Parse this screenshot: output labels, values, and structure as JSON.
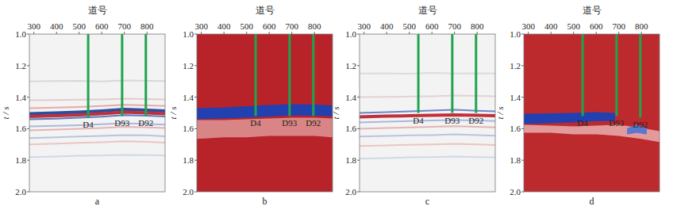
{
  "chart_data": [
    {
      "type": "seismic",
      "label": "a",
      "xlabel": "道号",
      "ylabel": "t / s",
      "color": "#f3f3f3",
      "xlim": [
        280,
        880
      ],
      "xticks": [
        300,
        400,
        500,
        600,
        700,
        800
      ],
      "ylim": [
        1.0,
        2.0
      ],
      "yticks": [
        {
          "value": 1.0,
          "label": "1.0"
        },
        1.2,
        1.4,
        1.6,
        1.8,
        {
          "value": 2.0,
          "label": "2.0"
        }
      ],
      "wells": [
        {
          "name": "D4",
          "x": 540,
          "bottom": 1.53,
          "color": "#1fa34f"
        },
        {
          "name": "D93",
          "x": 690,
          "bottom": 1.52,
          "color": "#1fa34f"
        },
        {
          "name": "D92",
          "x": 795,
          "bottom": 1.52,
          "color": "#1fa34f"
        }
      ],
      "events": [
        {
          "color": "#d8d8d8",
          "line_style": "thin",
          "x": [
            280,
            400,
            500,
            600,
            700,
            800,
            880
          ],
          "values": [
            1.3,
            1.298,
            1.296,
            1.3,
            1.294,
            1.296,
            1.298
          ]
        },
        {
          "color": "#e2cccc",
          "line_style": "thin",
          "x": [
            280,
            400,
            500,
            600,
            700,
            800,
            880
          ],
          "values": [
            1.42,
            1.418,
            1.416,
            1.414,
            1.41,
            1.412,
            1.414
          ]
        },
        {
          "color": "#e9a8a8",
          "line_style": "thin",
          "x": [
            280,
            400,
            500,
            600,
            700,
            800,
            880
          ],
          "values": [
            1.47,
            1.466,
            1.462,
            1.456,
            1.448,
            1.452,
            1.456
          ]
        },
        {
          "color": "#2a4fa0",
          "line_style": "thick",
          "x": [
            280,
            400,
            500,
            600,
            700,
            800,
            880
          ],
          "values": [
            1.505,
            1.5,
            1.495,
            1.488,
            1.478,
            1.482,
            1.488
          ]
        },
        {
          "color": "#c0303a",
          "line_style": "thick",
          "x": [
            280,
            400,
            500,
            600,
            700,
            800,
            880
          ],
          "values": [
            1.522,
            1.518,
            1.512,
            1.505,
            1.495,
            1.5,
            1.505
          ]
        },
        {
          "color": "#5a7ac0",
          "line_style": "thin",
          "x": [
            280,
            400,
            500,
            600,
            700,
            800,
            880
          ],
          "values": [
            1.54,
            1.536,
            1.53,
            1.524,
            1.514,
            1.518,
            1.523
          ]
        },
        {
          "color": "#a8b8dc",
          "line_style": "thin",
          "x": [
            280,
            400,
            500,
            600,
            700,
            800,
            880
          ],
          "values": [
            1.585,
            1.582,
            1.578,
            1.572,
            1.565,
            1.57,
            1.574
          ]
        },
        {
          "color": "#e5b3b3",
          "line_style": "thin",
          "x": [
            280,
            400,
            500,
            600,
            700,
            800,
            880
          ],
          "values": [
            1.61,
            1.606,
            1.6,
            1.595,
            1.588,
            1.592,
            1.596
          ]
        },
        {
          "color": "#b8c4e0",
          "line_style": "thin",
          "x": [
            280,
            400,
            500,
            600,
            700,
            800,
            880
          ],
          "values": [
            1.66,
            1.655,
            1.65,
            1.645,
            1.64,
            1.642,
            1.648
          ]
        },
        {
          "color": "#ecc4c4",
          "line_style": "thin",
          "x": [
            280,
            400,
            500,
            600,
            700,
            800,
            880
          ],
          "values": [
            1.7,
            1.695,
            1.69,
            1.686,
            1.68,
            1.684,
            1.688
          ]
        },
        {
          "color": "#d0d8e8",
          "line_style": "thin",
          "x": [
            280,
            400,
            500,
            600,
            700,
            800,
            880
          ],
          "values": [
            1.78,
            1.776,
            1.772,
            1.77,
            1.766,
            1.768,
            1.77
          ]
        }
      ]
    },
    {
      "type": "inversion",
      "label": "b",
      "xlabel": "道号",
      "ylabel": "t / s",
      "color": "#b8232a",
      "xlim": [
        280,
        880
      ],
      "xticks": [
        300,
        400,
        500,
        600,
        700,
        800
      ],
      "ylim": [
        1.0,
        2.0
      ],
      "yticks": [
        {
          "value": 1.0,
          "label": "1.0"
        },
        1.2,
        1.4,
        1.6,
        1.8,
        {
          "value": 2.0,
          "label": "2.0"
        }
      ],
      "wells": [
        {
          "name": "D4",
          "x": 540,
          "bottom": 1.52,
          "color": "#1fa34f"
        },
        {
          "name": "D93",
          "x": 690,
          "bottom": 1.52,
          "color": "#1fa34f"
        },
        {
          "name": "D92",
          "x": 795,
          "bottom": 1.52,
          "color": "#1fa34f"
        }
      ],
      "bands": [
        {
          "color": "#d98585",
          "x": [
            280,
            400,
            500,
            600,
            700,
            800,
            880
          ],
          "top": [
            1.55,
            1.55,
            1.545,
            1.54,
            1.535,
            1.535,
            1.54
          ],
          "bottom": [
            1.66,
            1.65,
            1.65,
            1.64,
            1.64,
            1.64,
            1.65
          ]
        },
        {
          "color": "#2340b0",
          "x": [
            280,
            400,
            500,
            600,
            700,
            800,
            880
          ],
          "top": [
            1.475,
            1.47,
            1.462,
            1.455,
            1.45,
            1.452,
            1.458
          ],
          "bottom": [
            1.535,
            1.53,
            1.525,
            1.518,
            1.51,
            1.512,
            1.515
          ]
        }
      ]
    },
    {
      "type": "seismic",
      "label": "c",
      "xlabel": "道号",
      "ylabel": "t / s",
      "color": "#f3f3f3",
      "xlim": [
        280,
        880
      ],
      "xticks": [
        300,
        400,
        500,
        600,
        700,
        800
      ],
      "ylim": [
        1.0,
        2.0
      ],
      "yticks": [
        {
          "value": 1.0,
          "label": "1.0"
        },
        1.2,
        1.4,
        1.6,
        1.8,
        {
          "value": 2.0,
          "label": "2.0"
        }
      ],
      "wells": [
        {
          "name": "D4",
          "x": 540,
          "bottom": 1.5,
          "color": "#1fa34f"
        },
        {
          "name": "D93",
          "x": 690,
          "bottom": 1.5,
          "color": "#1fa34f"
        },
        {
          "name": "D92",
          "x": 795,
          "bottom": 1.5,
          "color": "#1fa34f"
        }
      ],
      "events": [
        {
          "color": "#dcdcdc",
          "line_style": "thin",
          "x": [
            280,
            400,
            500,
            600,
            700,
            800,
            880
          ],
          "values": [
            1.25,
            1.248,
            1.252,
            1.246,
            1.25,
            1.248,
            1.25
          ]
        },
        {
          "color": "#e4d2d2",
          "line_style": "thin",
          "x": [
            280,
            400,
            500,
            600,
            700,
            800,
            880
          ],
          "values": [
            1.4,
            1.398,
            1.396,
            1.394,
            1.39,
            1.392,
            1.394
          ]
        },
        {
          "color": "#6a86c8",
          "line_style": "thin",
          "x": [
            280,
            400,
            500,
            600,
            700,
            800,
            880
          ],
          "values": [
            1.5,
            1.495,
            1.49,
            1.485,
            1.48,
            1.486,
            1.49
          ]
        },
        {
          "color": "#c0303a",
          "line_style": "thick",
          "x": [
            280,
            400,
            500,
            600,
            700,
            800,
            880
          ],
          "values": [
            1.525,
            1.52,
            1.518,
            1.515,
            1.512,
            1.515,
            1.518
          ]
        },
        {
          "color": "#a8b8dc",
          "line_style": "thin",
          "x": [
            280,
            400,
            500,
            600,
            700,
            800,
            880
          ],
          "values": [
            1.56,
            1.556,
            1.552,
            1.548,
            1.545,
            1.548,
            1.552
          ]
        },
        {
          "color": "#e5b3b3",
          "line_style": "thin",
          "x": [
            280,
            400,
            500,
            600,
            700,
            800,
            880
          ],
          "values": [
            1.6,
            1.596,
            1.592,
            1.588,
            1.584,
            1.588,
            1.592
          ]
        },
        {
          "color": "#b8c4e0",
          "line_style": "thin",
          "x": [
            280,
            400,
            500,
            600,
            700,
            800,
            880
          ],
          "values": [
            1.65,
            1.646,
            1.642,
            1.64,
            1.636,
            1.64,
            1.644
          ]
        },
        {
          "color": "#ecc4c4",
          "line_style": "thin",
          "x": [
            280,
            400,
            500,
            600,
            700,
            800,
            880
          ],
          "values": [
            1.71,
            1.706,
            1.702,
            1.7,
            1.696,
            1.7,
            1.704
          ]
        },
        {
          "color": "#d0d8e8",
          "line_style": "thin",
          "x": [
            280,
            400,
            500,
            600,
            700,
            800,
            880
          ],
          "values": [
            1.79,
            1.786,
            1.782,
            1.78,
            1.776,
            1.78,
            1.782
          ]
        }
      ]
    },
    {
      "type": "inversion",
      "label": "d",
      "xlabel": "道号",
      "ylabel": "t / s",
      "color": "#bd2a2e",
      "xlim": [
        280,
        880
      ],
      "xticks": [
        300,
        400,
        500,
        600,
        700,
        800
      ],
      "ylim": [
        1.0,
        2.0
      ],
      "yticks": [
        {
          "value": 1.0,
          "label": "1.0"
        },
        1.2,
        1.4,
        1.6,
        1.8,
        {
          "value": 2.0,
          "label": "2.0"
        }
      ],
      "wells": [
        {
          "name": "D4",
          "x": 540,
          "bottom": 1.52,
          "color": "#1fa34f"
        },
        {
          "name": "D93",
          "x": 690,
          "bottom": 1.52,
          "color": "#1fa34f"
        },
        {
          "name": "D92",
          "x": 795,
          "bottom": 1.53,
          "color": "#1fa34f"
        }
      ],
      "bands": [
        {
          "color": "#e39a9a",
          "x": [
            280,
            400,
            500,
            600,
            700,
            800,
            880
          ],
          "top": [
            1.58,
            1.585,
            1.59,
            1.585,
            1.58,
            1.6,
            1.62
          ],
          "bottom": [
            1.62,
            1.62,
            1.63,
            1.63,
            1.64,
            1.66,
            1.68
          ]
        },
        {
          "color": "#2340b0",
          "x": [
            280,
            400,
            500,
            600,
            680
          ],
          "top": [
            1.51,
            1.508,
            1.505,
            1.5,
            1.505
          ],
          "bottom": [
            1.565,
            1.56,
            1.555,
            1.548,
            1.545
          ]
        },
        {
          "color": "#5a78d0",
          "x": [
            740,
            780,
            820
          ],
          "top": [
            1.6,
            1.58,
            1.6
          ],
          "bottom": [
            1.63,
            1.62,
            1.63
          ]
        }
      ]
    }
  ]
}
